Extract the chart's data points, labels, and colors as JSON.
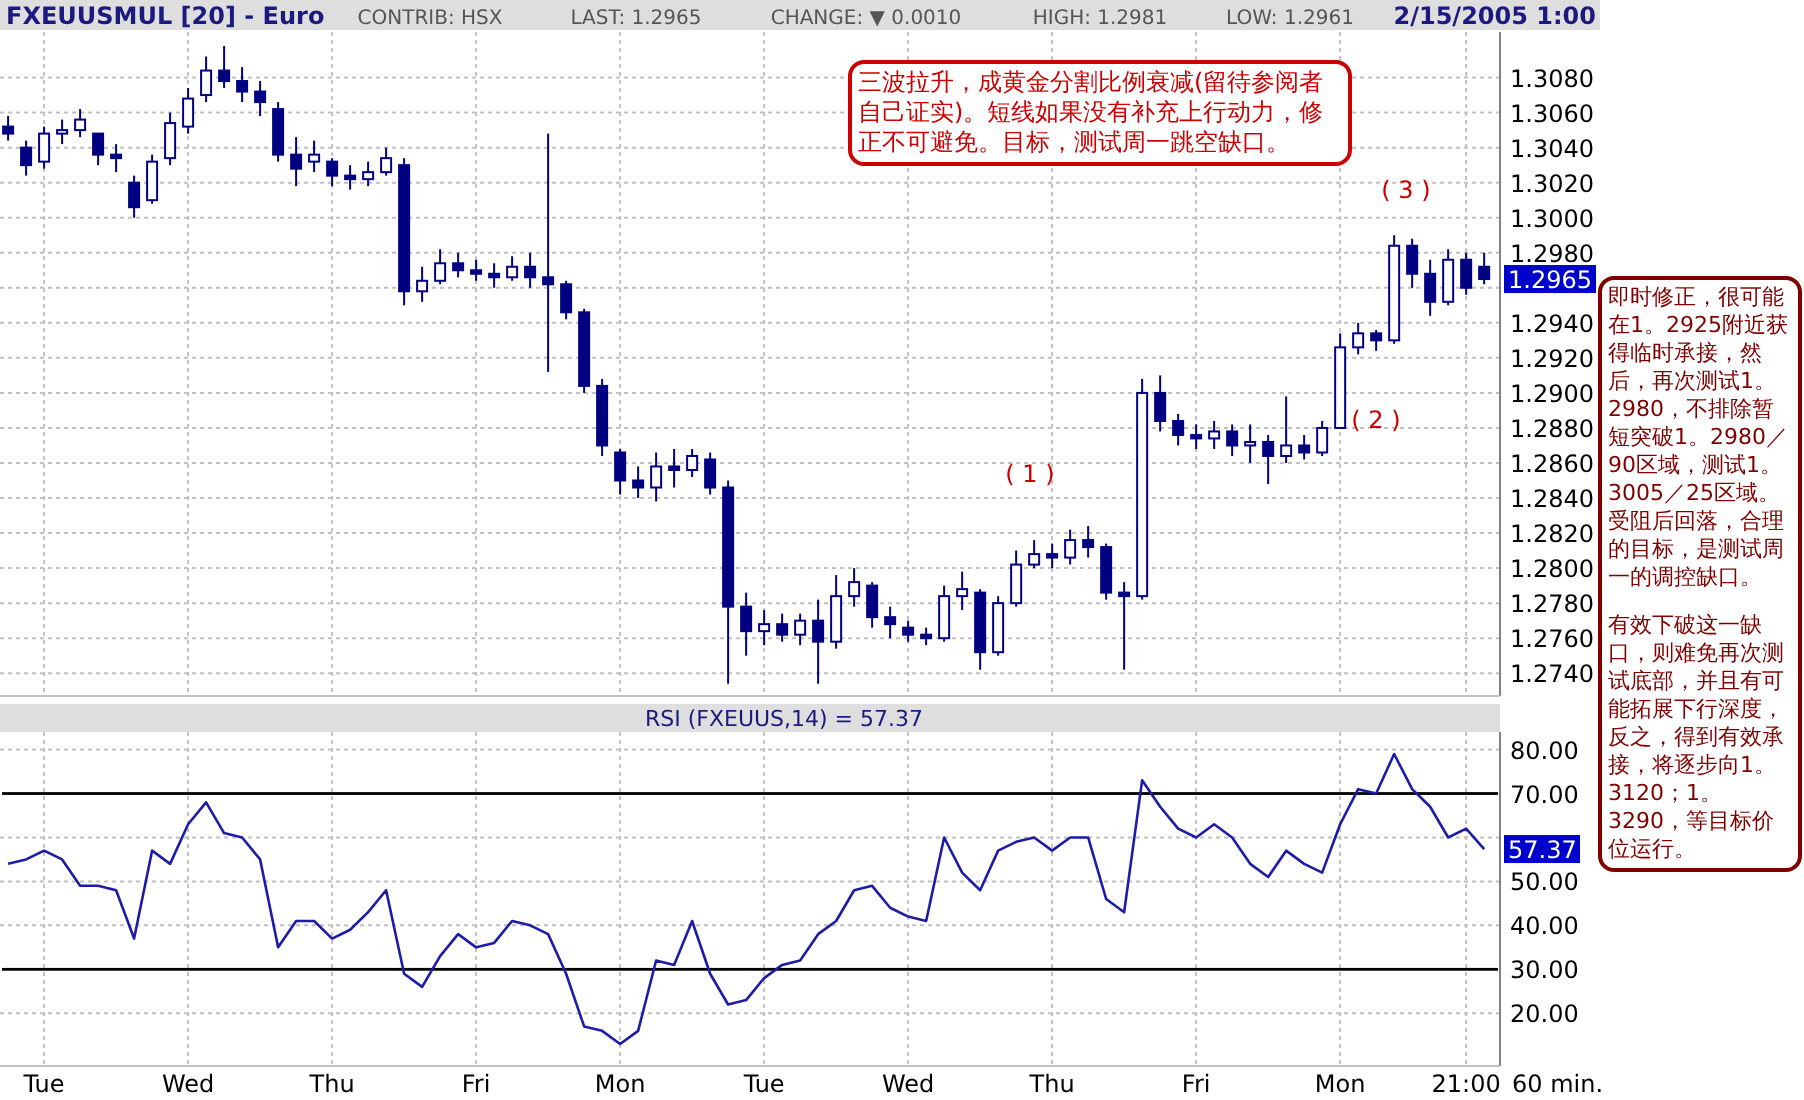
{
  "chart_data": [
    {
      "type": "candlestick",
      "title": "FXEUUSMUL [20] - Euro",
      "annotations": [
        "CONTRIB: HSX",
        "LAST: 1.2965",
        "CHANGE: ▼ 0.0010",
        "HIGH: 1.2981",
        "LOW: 1.2961",
        "2/15/2005 1:00",
        "三波拉升，成黄金分割比例衰减(留待参阅者自己证实)。短线如果没有补充上行动力，修正不可避免。目标，测试周一跳空缺口。",
        "即时修正，很可能在1。2925附近获得临时承接，然后，再次测试1。2980，不排除暂短突破1。2980／90区域，测试1。3005／25区域。受阻后回落，合理的目标，是测试周一的调控缺口。",
        "有效下破这一缺口，则难免再次测试底部，并且有可能拓展下行深度，反之，得到有效承接，将逐步向1。3120；1。3290，等目标价位运行。",
        "( 1 )",
        "( 2 )",
        "( 3 )",
        "1.2965"
      ],
      "color": "#000080",
      "categories": [
        null,
        null,
        null,
        null,
        null,
        null,
        null,
        null,
        null,
        null,
        null,
        null,
        null,
        null,
        null,
        null,
        null,
        null,
        null,
        null,
        null,
        null,
        null,
        null,
        null,
        null,
        null,
        null,
        null,
        null,
        null,
        null,
        null,
        null,
        null,
        null,
        null,
        null,
        null,
        null,
        null,
        null,
        null,
        null,
        null,
        null,
        null,
        null,
        null,
        null,
        null,
        null,
        null,
        null,
        null,
        null,
        null,
        null,
        null,
        null,
        null,
        null,
        null,
        null,
        null,
        null,
        null,
        null,
        null,
        null,
        null,
        null,
        null,
        null,
        null,
        null,
        null,
        null,
        null,
        null,
        null,
        null,
        null
      ],
      "ohlc": [
        [
          1.3052,
          1.3058,
          1.3044,
          1.3048
        ],
        [
          1.304,
          1.3044,
          1.3024,
          1.303
        ],
        [
          1.3032,
          1.3052,
          1.3028,
          1.3048
        ],
        [
          1.3048,
          1.3056,
          1.3042,
          1.305
        ],
        [
          1.305,
          1.3062,
          1.3046,
          1.3056
        ],
        [
          1.3048,
          1.3048,
          1.303,
          1.3036
        ],
        [
          1.3036,
          1.3042,
          1.3026,
          1.3034
        ],
        [
          1.302,
          1.3024,
          1.3,
          1.3006
        ],
        [
          1.301,
          1.3036,
          1.3008,
          1.3032
        ],
        [
          1.3034,
          1.306,
          1.303,
          1.3054
        ],
        [
          1.3052,
          1.3074,
          1.3048,
          1.3068
        ],
        [
          1.307,
          1.3092,
          1.3066,
          1.3084
        ],
        [
          1.3084,
          1.3098,
          1.3074,
          1.3078
        ],
        [
          1.3078,
          1.3086,
          1.3066,
          1.3072
        ],
        [
          1.3072,
          1.3078,
          1.3058,
          1.3066
        ],
        [
          1.3062,
          1.3066,
          1.3032,
          1.3036
        ],
        [
          1.3036,
          1.3046,
          1.3018,
          1.3028
        ],
        [
          1.3032,
          1.3044,
          1.3026,
          1.3036
        ],
        [
          1.3032,
          1.3034,
          1.3018,
          1.3024
        ],
        [
          1.3024,
          1.303,
          1.3016,
          1.3022
        ],
        [
          1.3022,
          1.3032,
          1.3018,
          1.3026
        ],
        [
          1.3026,
          1.304,
          1.3024,
          1.3034
        ],
        [
          1.303,
          1.3034,
          1.295,
          1.2958
        ],
        [
          1.2958,
          1.2972,
          1.2952,
          1.2964
        ],
        [
          1.2964,
          1.2982,
          1.2962,
          1.2974
        ],
        [
          1.2974,
          1.298,
          1.2966,
          1.297
        ],
        [
          1.297,
          1.2976,
          1.2964,
          1.2968
        ],
        [
          1.2968,
          1.2974,
          1.296,
          1.2966
        ],
        [
          1.2966,
          1.2978,
          1.2964,
          1.2972
        ],
        [
          1.2972,
          1.298,
          1.296,
          1.2966
        ],
        [
          1.2966,
          1.3048,
          1.2912,
          1.2962
        ],
        [
          1.2962,
          1.2964,
          1.2942,
          1.2946
        ],
        [
          1.2946,
          1.2948,
          1.29,
          1.2904
        ],
        [
          1.2904,
          1.2908,
          1.2864,
          1.287
        ],
        [
          1.2866,
          1.2868,
          1.2842,
          1.285
        ],
        [
          1.285,
          1.2858,
          1.284,
          1.2846
        ],
        [
          1.2846,
          1.2866,
          1.2838,
          1.2858
        ],
        [
          1.2858,
          1.2868,
          1.2846,
          1.2856
        ],
        [
          1.2856,
          1.2868,
          1.2852,
          1.2864
        ],
        [
          1.2862,
          1.2866,
          1.2842,
          1.2846
        ],
        [
          1.2846,
          1.285,
          1.2734,
          1.2778
        ],
        [
          1.2778,
          1.2786,
          1.275,
          1.2764
        ],
        [
          1.2764,
          1.2776,
          1.2756,
          1.2768
        ],
        [
          1.2768,
          1.2774,
          1.2758,
          1.2762
        ],
        [
          1.2762,
          1.2774,
          1.2756,
          1.277
        ],
        [
          1.277,
          1.2782,
          1.2734,
          1.2758
        ],
        [
          1.2758,
          1.2796,
          1.2754,
          1.2784
        ],
        [
          1.2784,
          1.28,
          1.2778,
          1.2792
        ],
        [
          1.279,
          1.2792,
          1.2766,
          1.2772
        ],
        [
          1.2772,
          1.2778,
          1.276,
          1.2768
        ],
        [
          1.2766,
          1.277,
          1.2758,
          1.2762
        ],
        [
          1.2762,
          1.2766,
          1.2756,
          1.276
        ],
        [
          1.276,
          1.279,
          1.2758,
          1.2784
        ],
        [
          1.2784,
          1.2798,
          1.2776,
          1.2788
        ],
        [
          1.2786,
          1.2788,
          1.2742,
          1.2752
        ],
        [
          1.2752,
          1.2784,
          1.275,
          1.278
        ],
        [
          1.278,
          1.281,
          1.2778,
          1.2802
        ],
        [
          1.2802,
          1.2816,
          1.28,
          1.2808
        ],
        [
          1.2808,
          1.2814,
          1.28,
          1.2806
        ],
        [
          1.2806,
          1.2822,
          1.2802,
          1.2816
        ],
        [
          1.2816,
          1.2824,
          1.2806,
          1.2812
        ],
        [
          1.2812,
          1.2814,
          1.2782,
          1.2786
        ],
        [
          1.2786,
          1.2792,
          1.2742,
          1.2784
        ],
        [
          1.2784,
          1.2908,
          1.2782,
          1.29
        ],
        [
          1.29,
          1.291,
          1.2878,
          1.2884
        ],
        [
          1.2884,
          1.2888,
          1.287,
          1.2876
        ],
        [
          1.2876,
          1.2882,
          1.2868,
          1.2874
        ],
        [
          1.2874,
          1.2884,
          1.2868,
          1.2878
        ],
        [
          1.2878,
          1.2882,
          1.2864,
          1.287
        ],
        [
          1.287,
          1.2882,
          1.286,
          1.2872
        ],
        [
          1.2872,
          1.2876,
          1.2848,
          1.2864
        ],
        [
          1.2864,
          1.2898,
          1.286,
          1.287
        ],
        [
          1.287,
          1.2876,
          1.2862,
          1.2866
        ],
        [
          1.2866,
          1.2884,
          1.2864,
          1.288
        ],
        [
          1.288,
          1.2934,
          1.288,
          1.2926
        ],
        [
          1.2926,
          1.294,
          1.2922,
          1.2934
        ],
        [
          1.2934,
          1.2936,
          1.2924,
          1.293
        ],
        [
          1.293,
          1.299,
          1.2928,
          1.2984
        ],
        [
          1.2984,
          1.2988,
          1.296,
          1.2968
        ],
        [
          1.2968,
          1.2976,
          1.2944,
          1.2952
        ],
        [
          1.2952,
          1.2982,
          1.295,
          1.2976
        ],
        [
          1.2976,
          1.298,
          1.2956,
          1.296
        ],
        [
          1.2972,
          1.298,
          1.2962,
          1.2965
        ]
      ],
      "ylim": [
        1.2727,
        1.3106
      ],
      "yticks": [
        {
          "value": 1.274,
          "label": "1.2740"
        },
        {
          "value": 1.276,
          "label": "1.2760"
        },
        {
          "value": 1.278,
          "label": "1.2780"
        },
        {
          "value": 1.28,
          "label": "1.2800"
        },
        {
          "value": 1.282,
          "label": "1.2820"
        },
        {
          "value": 1.284,
          "label": "1.2840"
        },
        {
          "value": 1.286,
          "label": "1.2860"
        },
        {
          "value": 1.288,
          "label": "1.2880"
        },
        {
          "value": 1.29,
          "label": "1.2900"
        },
        {
          "value": 1.292,
          "label": "1.2920"
        },
        {
          "value": 1.294,
          "label": "1.2940"
        },
        {
          "value": 1.296,
          "label": null
        },
        {
          "value": 1.298,
          "label": "1.2980"
        },
        {
          "value": 1.3,
          "label": "1.3000"
        },
        {
          "value": 1.302,
          "label": "1.3020"
        },
        {
          "value": 1.304,
          "label": "1.3040"
        },
        {
          "value": 1.306,
          "label": "1.3060"
        },
        {
          "value": 1.308,
          "label": "1.3080"
        }
      ],
      "grid": true,
      "tick_labels": "y"
    },
    {
      "type": "line",
      "title": "RSI (FXEUUS,14) = 57.37",
      "xlabel": "60 min.",
      "annotations": [
        "57.37"
      ],
      "categories": [
        null,
        null,
        "Tue",
        null,
        null,
        null,
        null,
        null,
        null,
        null,
        "Wed",
        null,
        null,
        null,
        null,
        null,
        null,
        null,
        "Thu",
        null,
        null,
        null,
        null,
        null,
        null,
        null,
        "Fri",
        null,
        null,
        null,
        null,
        null,
        null,
        null,
        "Mon",
        null,
        null,
        null,
        null,
        null,
        null,
        null,
        "Tue",
        null,
        null,
        null,
        null,
        null,
        null,
        null,
        "Wed",
        null,
        null,
        null,
        null,
        null,
        null,
        null,
        "Thu",
        null,
        null,
        null,
        null,
        null,
        null,
        null,
        "Fri",
        null,
        null,
        null,
        null,
        null,
        null,
        null,
        "Mon",
        null,
        null,
        null,
        null,
        null,
        null,
        "21:00",
        null
      ],
      "series": [
        {
          "color": "#1c1ca8",
          "values": [
            54,
            55,
            57,
            55,
            49,
            49,
            48,
            37,
            57,
            54,
            63,
            68,
            61,
            60,
            55,
            35,
            41,
            41,
            37,
            39,
            43,
            48,
            29,
            26,
            33,
            38,
            35,
            36,
            41,
            40,
            38,
            29,
            17,
            16,
            13,
            16,
            32,
            31,
            41,
            29,
            22,
            23,
            28,
            31,
            32,
            38,
            41,
            48,
            49,
            44,
            42,
            41,
            60,
            52,
            48,
            57,
            59,
            60,
            57,
            60,
            60,
            46,
            43,
            73,
            67,
            62,
            60,
            63,
            60,
            54,
            51,
            57,
            54,
            52,
            63,
            71,
            70,
            79,
            71,
            67,
            60,
            62,
            57.37
          ]
        }
      ],
      "ylim": [
        8,
        84
      ],
      "yticks": [
        {
          "value": 20,
          "label": "20.00"
        },
        {
          "value": 30,
          "label": "30.00"
        },
        {
          "value": 40,
          "label": "40.00"
        },
        {
          "value": 50,
          "label": "50.00"
        },
        {
          "value": 60,
          "label": null
        },
        {
          "value": 70,
          "label": "70.00"
        },
        {
          "value": 80,
          "label": "80.00"
        }
      ],
      "ref_lines": [
        {
          "axis": "y",
          "value": 70,
          "color": "#000000"
        },
        {
          "axis": "y",
          "value": 30,
          "color": "#000000"
        }
      ],
      "grid": true
    }
  ]
}
